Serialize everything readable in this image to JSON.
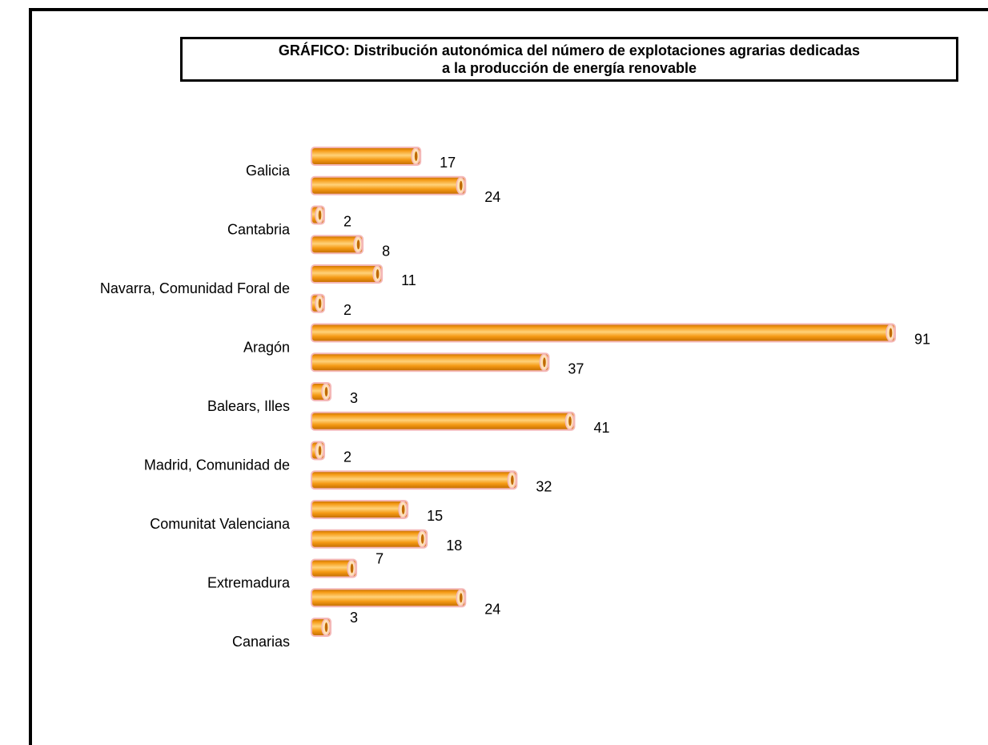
{
  "title": {
    "line1": "GRÁFICO: Distribución autonómica del número de explotaciones agrarias dedicadas",
    "line2": "a la producción de energía renovable"
  },
  "colors": {
    "bar_fill": "#F59A14",
    "bar_highlight": "#FFD27A",
    "bar_shadow": "#C06A00",
    "bar_outline": "#F4B8B8",
    "cap_fill": "#FFE2B8"
  },
  "chart_data": {
    "type": "bar",
    "orientation": "horizontal",
    "title": "GRÁFICO: Distribución autonómica del número de explotaciones agrarias dedicadas a la producción de energía renovable",
    "categories": [
      "Galicia",
      "",
      "Cantabria",
      "",
      "Navarra, Comunidad Foral de",
      "",
      "Aragón",
      "",
      "Balears, Illes",
      "",
      "Madrid, Comunidad de",
      "",
      "Comunitat Valenciana",
      "",
      "Extremadura",
      "",
      "Canarias"
    ],
    "values": [
      17,
      24,
      2,
      8,
      11,
      2,
      91,
      37,
      3,
      41,
      2,
      32,
      15,
      18,
      7,
      24,
      3
    ],
    "xlim": [
      0,
      91
    ],
    "grid": false,
    "legend": "none",
    "bar_style": "cylinder"
  }
}
